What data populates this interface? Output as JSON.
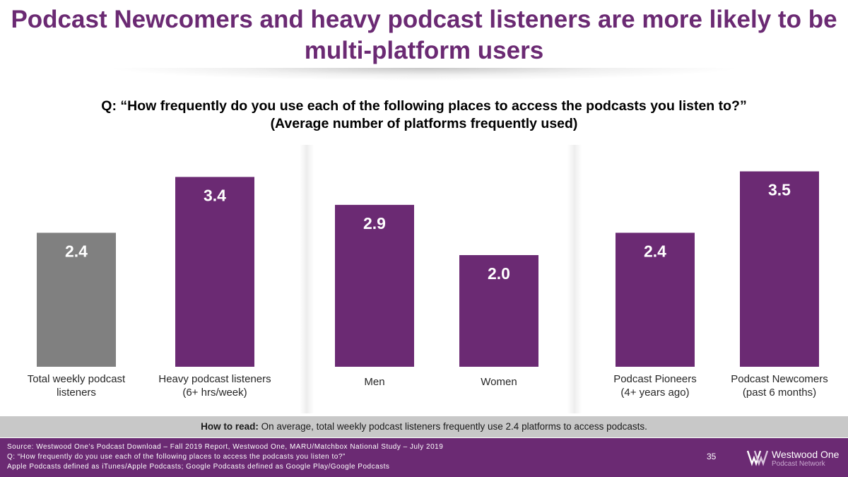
{
  "title": "Podcast Newcomers and heavy podcast listeners are more likely to be multi-platform users",
  "question_line1": "Q: “How frequently do you use each of the following places to access the podcasts you listen to?”",
  "question_line2": "(Average number of platforms frequently used)",
  "chart_data": {
    "type": "bar",
    "title": "",
    "xlabel": "",
    "ylabel": "",
    "ylim": [
      0,
      4
    ],
    "grid": false,
    "legend": "none",
    "categories": [
      "Total weekly podcast listeners",
      "Heavy podcast listeners (6+ hrs/week)",
      "Men",
      "Women",
      "Podcast Pioneers (4+ years ago)",
      "Podcast Newcomers (past 6 months)"
    ],
    "values": [
      2.4,
      3.4,
      2.9,
      2.0,
      2.4,
      3.5
    ],
    "data_labels": [
      "2.4",
      "3.4",
      "2.9",
      "2.0",
      "2.4",
      "3.5"
    ],
    "colors": [
      "#808080",
      "#6b2a73",
      "#6b2a73",
      "#6b2a73",
      "#6b2a73",
      "#6b2a73"
    ]
  },
  "xlabels": [
    {
      "line1": "Total weekly podcast",
      "line2": "listeners"
    },
    {
      "line1": "Heavy podcast listeners",
      "line2": "(6+ hrs/week)"
    },
    {
      "line1": "Men",
      "line2": ""
    },
    {
      "line1": "Women",
      "line2": ""
    },
    {
      "line1": "Podcast Pioneers",
      "line2": "(4+ years ago)"
    },
    {
      "line1": "Podcast Newcomers",
      "line2": "(past 6 months)"
    }
  ],
  "how_to_read": {
    "label": "How to read:",
    "text": " On average, total weekly podcast listeners frequently use 2.4 platforms to access podcasts."
  },
  "footer": {
    "source_line1": "Source: Westwood One’s Podcast Download – Fall 2019 Report, Westwood One, MARU/Matchbox National Study – July 2019",
    "source_line2": "Q: “How frequently do you use each of the following places to access the podcasts you listen to?”",
    "source_line3": "Apple Podcasts defined as iTunes/Apple Podcasts; Google Podcasts defined as Google Play/Google Podcasts",
    "page_number": "35",
    "logo_name": "Westwood One",
    "logo_sub": "Podcast Network"
  }
}
